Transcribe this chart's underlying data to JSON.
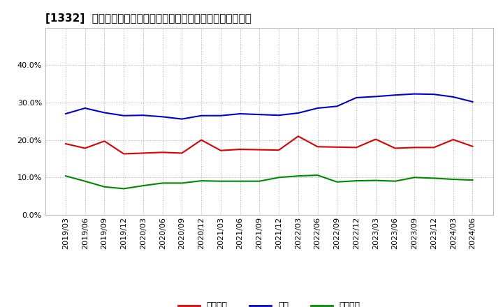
{
  "title": "[1332]  売上債権、在庫、買入債務の総資産に対する比率の推移",
  "x_labels": [
    "2019/03",
    "2019/06",
    "2019/09",
    "2019/12",
    "2020/03",
    "2020/06",
    "2020/09",
    "2020/12",
    "2021/03",
    "2021/06",
    "2021/09",
    "2021/12",
    "2022/03",
    "2022/06",
    "2022/09",
    "2022/12",
    "2023/03",
    "2023/06",
    "2023/09",
    "2023/12",
    "2024/03",
    "2024/06"
  ],
  "uriken": [
    0.19,
    0.178,
    0.197,
    0.163,
    0.165,
    0.167,
    0.165,
    0.2,
    0.172,
    0.175,
    0.174,
    0.173,
    0.21,
    0.182,
    0.181,
    0.18,
    0.202,
    0.178,
    0.18,
    0.18,
    0.201,
    0.183
  ],
  "zaiko": [
    0.27,
    0.285,
    0.273,
    0.265,
    0.266,
    0.262,
    0.256,
    0.265,
    0.265,
    0.27,
    0.268,
    0.266,
    0.272,
    0.285,
    0.29,
    0.313,
    0.316,
    0.32,
    0.323,
    0.322,
    0.315,
    0.302
  ],
  "kaiire": [
    0.104,
    0.09,
    0.075,
    0.07,
    0.078,
    0.085,
    0.085,
    0.091,
    0.09,
    0.09,
    0.09,
    0.1,
    0.104,
    0.106,
    0.088,
    0.091,
    0.092,
    0.09,
    0.1,
    0.098,
    0.095,
    0.093
  ],
  "uriken_color": "#dd0000",
  "zaiko_color": "#0000cc",
  "kaiire_color": "#008800",
  "legend_uriken": "売上債権",
  "legend_zaiko": "在庫",
  "legend_kaiire": "買入債務",
  "ylim": [
    0.0,
    0.5
  ],
  "yticks": [
    0.0,
    0.1,
    0.2,
    0.3,
    0.4
  ],
  "background_color": "#ffffff",
  "grid_color": "#aaaaaa",
  "title_fontsize": 11,
  "tick_fontsize": 8,
  "legend_fontsize": 9
}
